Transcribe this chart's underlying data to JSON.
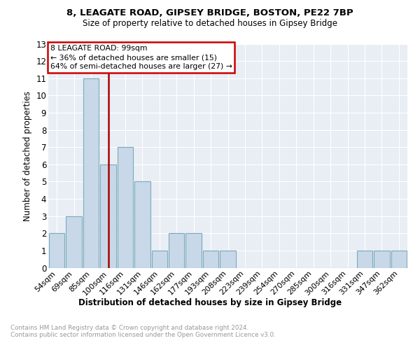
{
  "title1": "8, LEAGATE ROAD, GIPSEY BRIDGE, BOSTON, PE22 7BP",
  "title2": "Size of property relative to detached houses in Gipsey Bridge",
  "xlabel": "Distribution of detached houses by size in Gipsey Bridge",
  "ylabel": "Number of detached properties",
  "categories": [
    "54sqm",
    "69sqm",
    "85sqm",
    "100sqm",
    "116sqm",
    "131sqm",
    "146sqm",
    "162sqm",
    "177sqm",
    "193sqm",
    "208sqm",
    "223sqm",
    "239sqm",
    "254sqm",
    "270sqm",
    "285sqm",
    "300sqm",
    "316sqm",
    "331sqm",
    "347sqm",
    "362sqm"
  ],
  "values": [
    2,
    3,
    11,
    6,
    7,
    5,
    1,
    2,
    2,
    1,
    1,
    0,
    0,
    0,
    0,
    0,
    0,
    0,
    1,
    1,
    1
  ],
  "bar_color": "#c8d8e8",
  "bar_edge_color": "#7aaabb",
  "vline_x_index": 3,
  "vline_color": "#aa0000",
  "annotation_title": "8 LEAGATE ROAD: 99sqm",
  "annotation_line1": "← 36% of detached houses are smaller (15)",
  "annotation_line2": "64% of semi-detached houses are larger (27) →",
  "annotation_box_color": "#cc0000",
  "ylim": [
    0,
    13
  ],
  "yticks": [
    0,
    1,
    2,
    3,
    4,
    5,
    6,
    7,
    8,
    9,
    10,
    11,
    12,
    13
  ],
  "footer": "Contains HM Land Registry data © Crown copyright and database right 2024.\nContains public sector information licensed under the Open Government Licence v3.0.",
  "bg_color": "#e8eef4",
  "fig_bg_color": "#ffffff"
}
